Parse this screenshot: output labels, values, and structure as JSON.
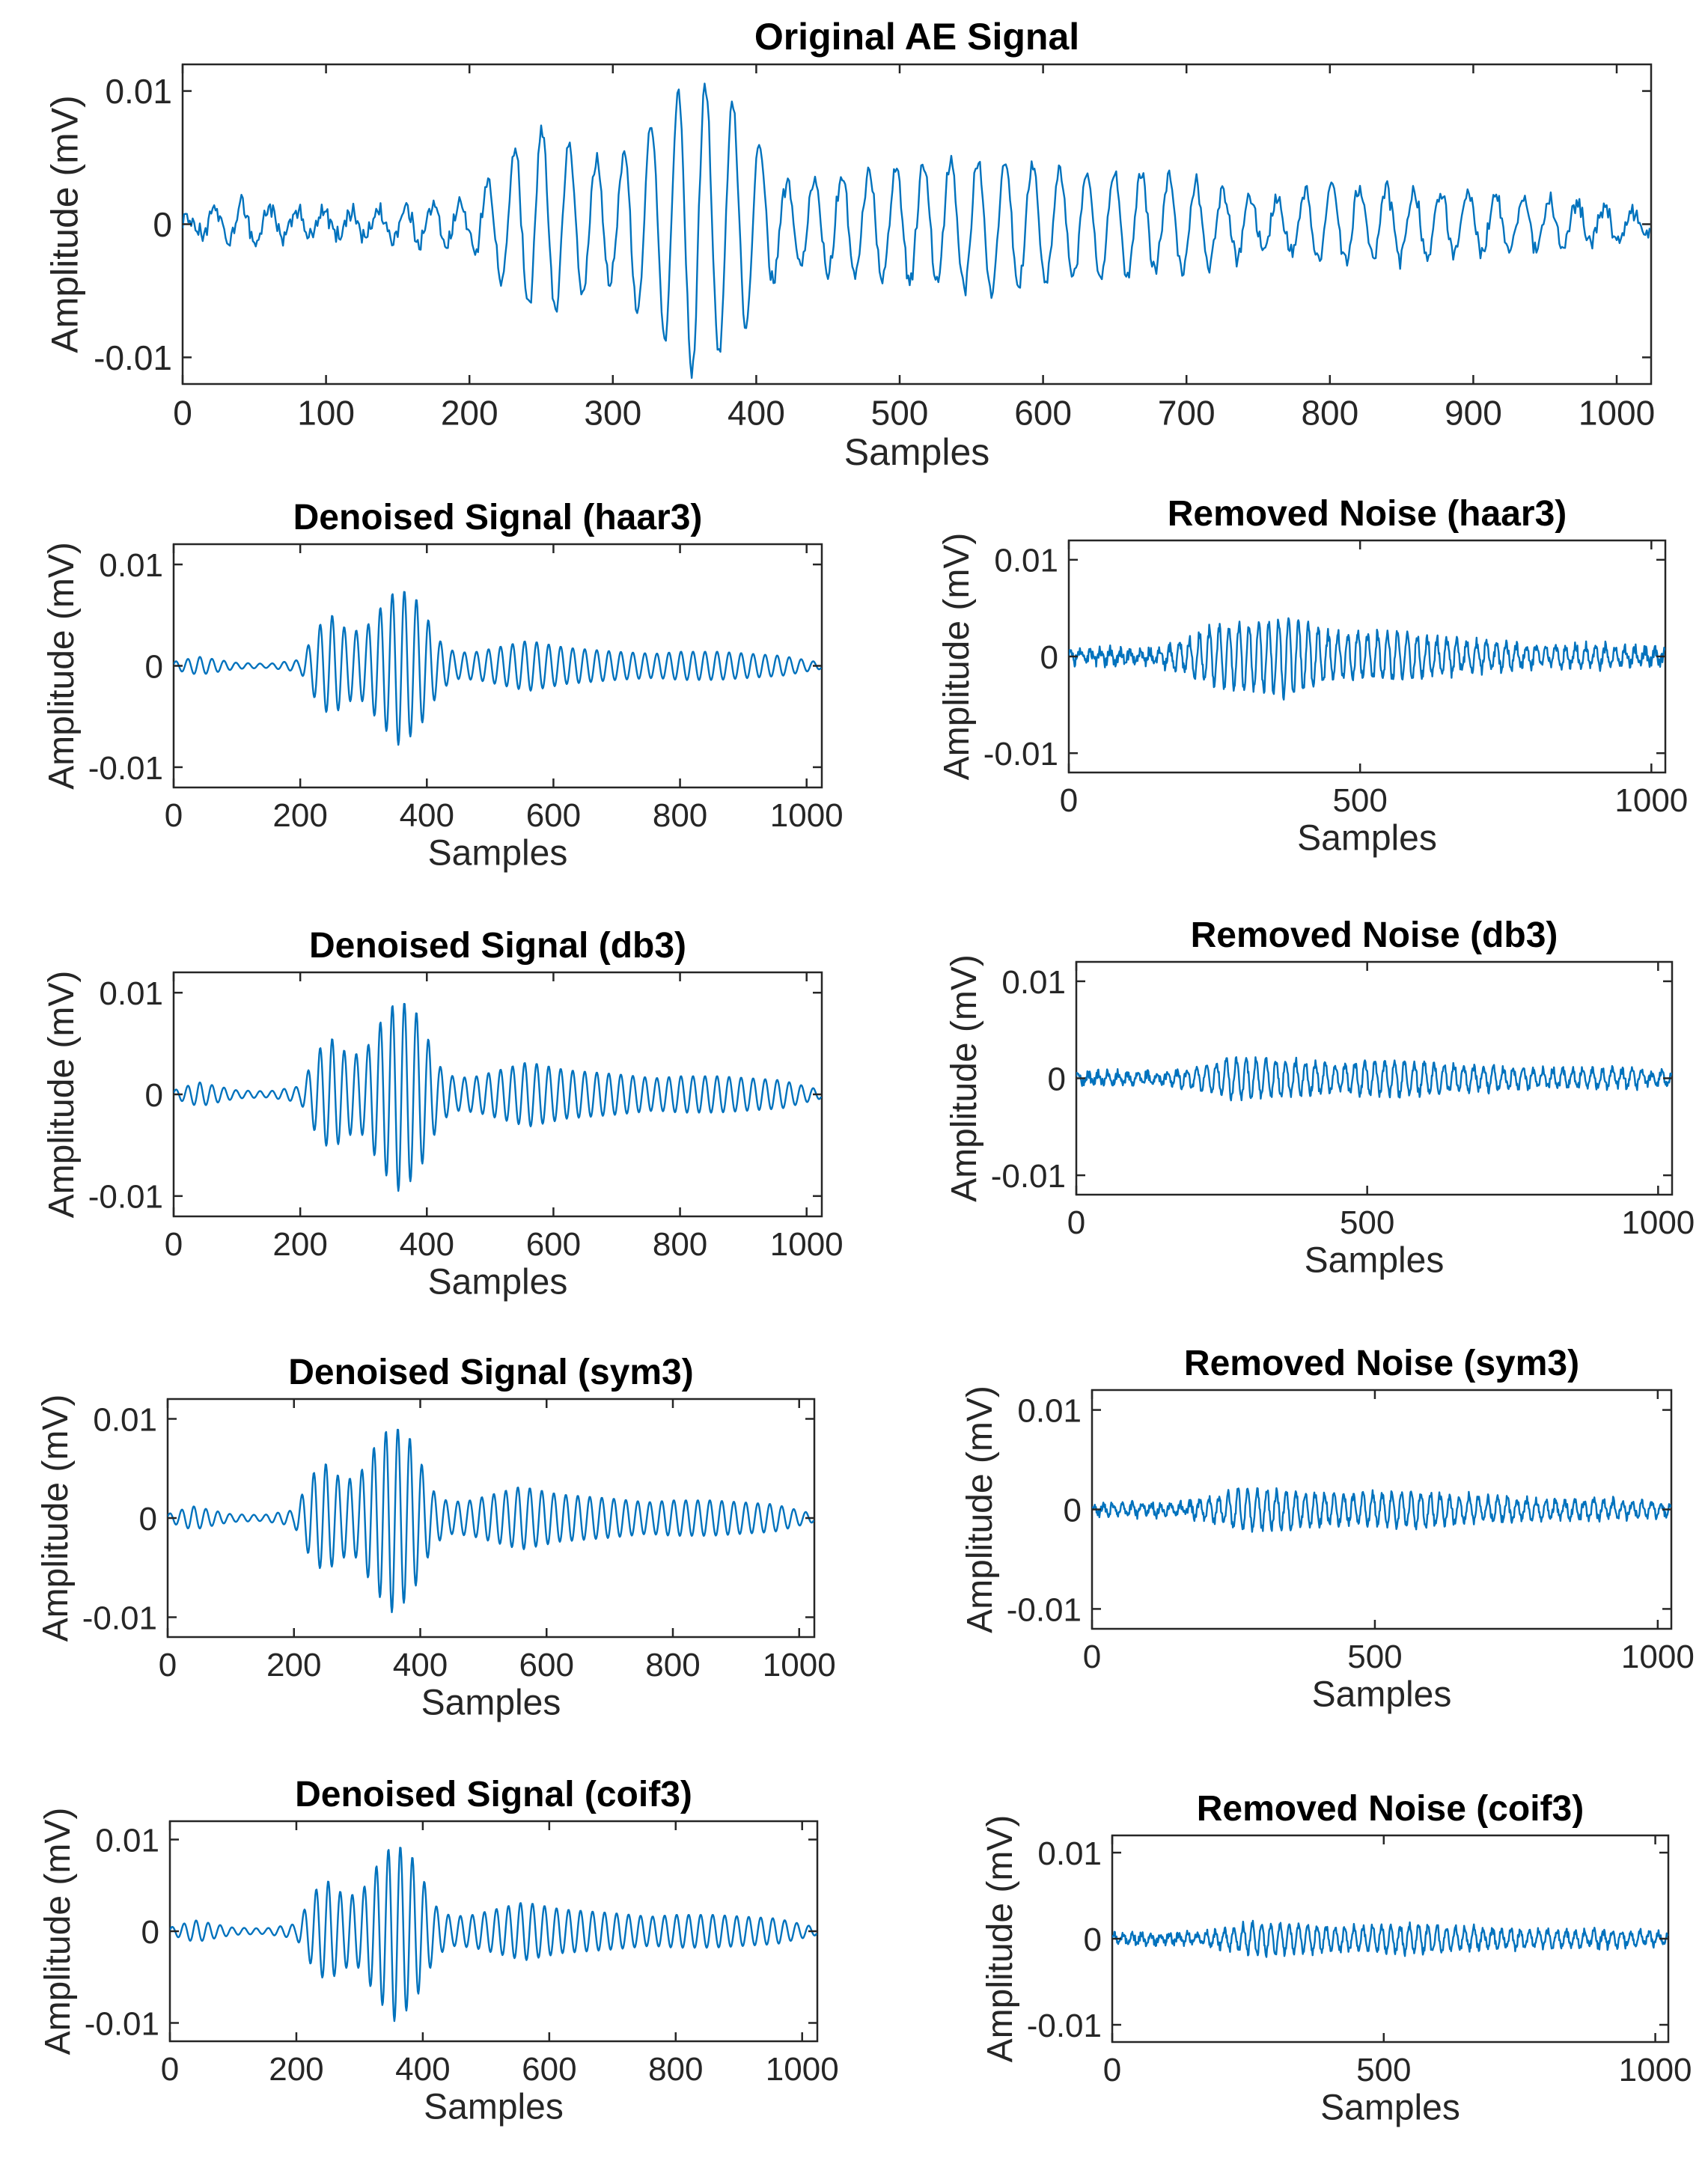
{
  "chart_data": [
    {
      "id": "original",
      "type": "line",
      "title": "Original AE Signal",
      "xlabel": "Samples",
      "ylabel": "Amplitude (mV)",
      "xlim": [
        0,
        1024
      ],
      "ylim": [
        -0.012,
        0.012
      ],
      "xticks": [
        0,
        100,
        200,
        300,
        400,
        500,
        600,
        700,
        800,
        900,
        1000
      ],
      "xtick_labels": [
        "0",
        "100",
        "200",
        "300",
        "400",
        "500",
        "600",
        "700",
        "800",
        "900",
        "1000"
      ],
      "yticks": [
        0.01,
        0,
        -0.01
      ],
      "ytick_labels": [
        "0.01",
        "0",
        "-0.01"
      ],
      "color": "#0072BD",
      "series": [
        {
          "name": "Original AE Signal",
          "samples": 1024,
          "envelope": [
            [
              0,
              0.0004
            ],
            [
              40,
              0.0016
            ],
            [
              100,
              0.0008
            ],
            [
              150,
              0.0012
            ],
            [
              200,
              0.0016
            ],
            [
              230,
              0.0055
            ],
            [
              250,
              0.0072
            ],
            [
              275,
              0.0055
            ],
            [
              300,
              0.0045
            ],
            [
              330,
              0.008
            ],
            [
              355,
              0.0115
            ],
            [
              385,
              0.009
            ],
            [
              420,
              0.003
            ],
            [
              445,
              0.0035
            ],
            [
              480,
              0.004
            ],
            [
              560,
              0.005
            ],
            [
              620,
              0.0042
            ],
            [
              700,
              0.0035
            ],
            [
              760,
              0.0018
            ],
            [
              800,
              0.003
            ],
            [
              860,
              0.0025
            ],
            [
              960,
              0.0018
            ],
            [
              1024,
              0.0008
            ]
          ],
          "period": 19,
          "noise": 0.0006
        }
      ]
    },
    {
      "id": "denoised-haar3",
      "type": "line",
      "title": "Denoised Signal (haar3)",
      "xlabel": "Samples",
      "ylabel": "Amplitude (mV)",
      "xlim": [
        0,
        1024
      ],
      "ylim": [
        -0.012,
        0.012
      ],
      "xticks": [
        0,
        200,
        400,
        600,
        800,
        1000
      ],
      "xtick_labels": [
        "0",
        "200",
        "400",
        "600",
        "800",
        "1000"
      ],
      "yticks": [
        0.01,
        0,
        -0.01
      ],
      "ytick_labels": [
        "0.01",
        "0",
        "-0.01"
      ],
      "color": "#0072BD",
      "series": [
        {
          "name": "Denoised Signal (haar3)",
          "samples": 1024,
          "envelope": [
            [
              0,
              0.0004
            ],
            [
              40,
              0.0009
            ],
            [
              100,
              0.0003
            ],
            [
              150,
              0.0002
            ],
            [
              200,
              0.0006
            ],
            [
              230,
              0.004
            ],
            [
              250,
              0.005
            ],
            [
              275,
              0.0035
            ],
            [
              300,
              0.0035
            ],
            [
              330,
              0.006
            ],
            [
              355,
              0.0078
            ],
            [
              385,
              0.0065
            ],
            [
              420,
              0.0025
            ],
            [
              445,
              0.0013
            ],
            [
              480,
              0.0014
            ],
            [
              560,
              0.0025
            ],
            [
              620,
              0.0018
            ],
            [
              700,
              0.0014
            ],
            [
              760,
              0.0012
            ],
            [
              800,
              0.0014
            ],
            [
              860,
              0.0014
            ],
            [
              960,
              0.001
            ],
            [
              1024,
              0.0003
            ]
          ],
          "period": 19,
          "noise": 0.0
        }
      ]
    },
    {
      "id": "noise-haar3",
      "type": "line",
      "title": "Removed Noise (haar3)",
      "xlabel": "Samples",
      "ylabel": "Amplitude (mV)",
      "xlim": [
        0,
        1024
      ],
      "ylim": [
        -0.012,
        0.012
      ],
      "xticks": [
        0,
        500,
        1000
      ],
      "xtick_labels": [
        "0",
        "500",
        "1000"
      ],
      "yticks": [
        0.01,
        0,
        -0.01
      ],
      "ytick_labels": [
        "0.01",
        "0",
        "-0.01"
      ],
      "color": "#0072BD",
      "series": [
        {
          "name": "Removed Noise (haar3)",
          "samples": 1024,
          "envelope": [
            [
              0,
              0.0005
            ],
            [
              150,
              0.0006
            ],
            [
              220,
              0.002
            ],
            [
              250,
              0.003
            ],
            [
              330,
              0.0035
            ],
            [
              380,
              0.004
            ],
            [
              450,
              0.0022
            ],
            [
              560,
              0.0025
            ],
            [
              620,
              0.0018
            ],
            [
              700,
              0.0014
            ],
            [
              800,
              0.001
            ],
            [
              900,
              0.001
            ],
            [
              1024,
              0.0006
            ]
          ],
          "period": 17,
          "noise": 0.0005
        }
      ]
    },
    {
      "id": "denoised-db3",
      "type": "line",
      "title": "Denoised Signal (db3)",
      "xlabel": "Samples",
      "ylabel": "Amplitude (mV)",
      "xlim": [
        0,
        1024
      ],
      "ylim": [
        -0.012,
        0.012
      ],
      "xticks": [
        0,
        200,
        400,
        600,
        800,
        1000
      ],
      "xtick_labels": [
        "0",
        "200",
        "400",
        "600",
        "800",
        "1000"
      ],
      "yticks": [
        0.01,
        0,
        -0.01
      ],
      "ytick_labels": [
        "0.01",
        "0",
        "-0.01"
      ],
      "color": "#0072BD",
      "series": [
        {
          "name": "Denoised Signal (db3)",
          "samples": 1024,
          "envelope": [
            [
              0,
              0.0004
            ],
            [
              40,
              0.0012
            ],
            [
              100,
              0.0004
            ],
            [
              150,
              0.0003
            ],
            [
              200,
              0.0008
            ],
            [
              230,
              0.0045
            ],
            [
              250,
              0.0055
            ],
            [
              275,
              0.004
            ],
            [
              300,
              0.004
            ],
            [
              330,
              0.0075
            ],
            [
              355,
              0.0095
            ],
            [
              385,
              0.008
            ],
            [
              420,
              0.0028
            ],
            [
              445,
              0.0016
            ],
            [
              480,
              0.0018
            ],
            [
              560,
              0.0032
            ],
            [
              620,
              0.0024
            ],
            [
              700,
              0.002
            ],
            [
              760,
              0.0016
            ],
            [
              800,
              0.0018
            ],
            [
              860,
              0.0018
            ],
            [
              960,
              0.0014
            ],
            [
              1024,
              0.0004
            ]
          ],
          "period": 19,
          "noise": 0.0
        }
      ]
    },
    {
      "id": "noise-db3",
      "type": "line",
      "title": "Removed Noise (db3)",
      "xlabel": "Samples",
      "ylabel": "Amplitude (mV)",
      "xlim": [
        0,
        1024
      ],
      "ylim": [
        -0.012,
        0.012
      ],
      "xticks": [
        0,
        500,
        1000
      ],
      "xtick_labels": [
        "0",
        "500",
        "1000"
      ],
      "yticks": [
        0.01,
        0,
        -0.01
      ],
      "ytick_labels": [
        "0.01",
        "0",
        "-0.01"
      ],
      "color": "#0072BD",
      "series": [
        {
          "name": "Removed Noise (db3)",
          "samples": 1024,
          "envelope": [
            [
              0,
              0.0005
            ],
            [
              150,
              0.0005
            ],
            [
              220,
              0.0012
            ],
            [
              260,
              0.002
            ],
            [
              350,
              0.0018
            ],
            [
              450,
              0.0014
            ],
            [
              560,
              0.0018
            ],
            [
              620,
              0.0014
            ],
            [
              700,
              0.0012
            ],
            [
              800,
              0.0009
            ],
            [
              900,
              0.0009
            ],
            [
              1024,
              0.0006
            ]
          ],
          "period": 17,
          "noise": 0.0004
        }
      ]
    },
    {
      "id": "denoised-sym3",
      "type": "line",
      "title": "Denoised Signal (sym3)",
      "xlabel": "Samples",
      "ylabel": "Amplitude (mV)",
      "xlim": [
        0,
        1024
      ],
      "ylim": [
        -0.012,
        0.012
      ],
      "xticks": [
        0,
        200,
        400,
        600,
        800,
        1000
      ],
      "xtick_labels": [
        "0",
        "200",
        "400",
        "600",
        "800",
        "1000"
      ],
      "yticks": [
        0.01,
        0,
        -0.01
      ],
      "ytick_labels": [
        "0.01",
        "0",
        "-0.01"
      ],
      "color": "#0072BD",
      "series": [
        {
          "name": "Denoised Signal (sym3)",
          "samples": 1024,
          "envelope": [
            [
              0,
              0.0004
            ],
            [
              40,
              0.0012
            ],
            [
              100,
              0.0004
            ],
            [
              150,
              0.0003
            ],
            [
              200,
              0.0008
            ],
            [
              230,
              0.0045
            ],
            [
              250,
              0.0055
            ],
            [
              275,
              0.004
            ],
            [
              300,
              0.004
            ],
            [
              330,
              0.0075
            ],
            [
              355,
              0.0095
            ],
            [
              385,
              0.008
            ],
            [
              420,
              0.0028
            ],
            [
              445,
              0.0016
            ],
            [
              480,
              0.0018
            ],
            [
              560,
              0.0032
            ],
            [
              620,
              0.0024
            ],
            [
              700,
              0.002
            ],
            [
              760,
              0.0016
            ],
            [
              800,
              0.0018
            ],
            [
              860,
              0.0018
            ],
            [
              960,
              0.0014
            ],
            [
              1024,
              0.0004
            ]
          ],
          "period": 19,
          "noise": 0.0
        }
      ]
    },
    {
      "id": "noise-sym3",
      "type": "line",
      "title": "Removed Noise (sym3)",
      "xlabel": "Samples",
      "ylabel": "Amplitude (mV)",
      "xlim": [
        0,
        1024
      ],
      "ylim": [
        -0.012,
        0.012
      ],
      "xticks": [
        0,
        500,
        1000
      ],
      "xtick_labels": [
        "0",
        "500",
        "1000"
      ],
      "yticks": [
        0.01,
        0,
        -0.01
      ],
      "ytick_labels": [
        "0.01",
        "0",
        "-0.01"
      ],
      "color": "#0072BD",
      "series": [
        {
          "name": "Removed Noise (sym3)",
          "samples": 1024,
          "envelope": [
            [
              0,
              0.0005
            ],
            [
              150,
              0.0005
            ],
            [
              220,
              0.0012
            ],
            [
              260,
              0.002
            ],
            [
              350,
              0.0018
            ],
            [
              450,
              0.0014
            ],
            [
              560,
              0.0018
            ],
            [
              620,
              0.0014
            ],
            [
              700,
              0.0012
            ],
            [
              800,
              0.0009
            ],
            [
              900,
              0.0009
            ],
            [
              1024,
              0.0006
            ]
          ],
          "period": 17,
          "noise": 0.0004
        }
      ]
    },
    {
      "id": "denoised-coif3",
      "type": "line",
      "title": "Denoised Signal (coif3)",
      "xlabel": "Samples",
      "ylabel": "Amplitude (mV)",
      "xlim": [
        0,
        1024
      ],
      "ylim": [
        -0.012,
        0.012
      ],
      "xticks": [
        0,
        200,
        400,
        600,
        800,
        1000
      ],
      "xtick_labels": [
        "0",
        "200",
        "400",
        "600",
        "800",
        "1000"
      ],
      "yticks": [
        0.01,
        0,
        -0.01
      ],
      "ytick_labels": [
        "0.01",
        "0",
        "-0.01"
      ],
      "color": "#0072BD",
      "series": [
        {
          "name": "Denoised Signal (coif3)",
          "samples": 1024,
          "envelope": [
            [
              0,
              0.0004
            ],
            [
              40,
              0.0012
            ],
            [
              100,
              0.0004
            ],
            [
              150,
              0.0003
            ],
            [
              200,
              0.0008
            ],
            [
              230,
              0.0045
            ],
            [
              250,
              0.0055
            ],
            [
              275,
              0.004
            ],
            [
              300,
              0.004
            ],
            [
              330,
              0.0075
            ],
            [
              355,
              0.0098
            ],
            [
              385,
              0.008
            ],
            [
              420,
              0.0028
            ],
            [
              445,
              0.0016
            ],
            [
              480,
              0.0018
            ],
            [
              560,
              0.0032
            ],
            [
              620,
              0.0024
            ],
            [
              700,
              0.002
            ],
            [
              760,
              0.0016
            ],
            [
              800,
              0.0018
            ],
            [
              860,
              0.0018
            ],
            [
              960,
              0.0014
            ],
            [
              1024,
              0.0004
            ]
          ],
          "period": 19,
          "noise": 0.0
        }
      ]
    },
    {
      "id": "noise-coif3",
      "type": "line",
      "title": "Removed Noise (coif3)",
      "xlabel": "Samples",
      "ylabel": "Amplitude (mV)",
      "xlim": [
        0,
        1024
      ],
      "ylim": [
        -0.012,
        0.012
      ],
      "xticks": [
        0,
        500,
        1000
      ],
      "xtick_labels": [
        "0",
        "500",
        "1000"
      ],
      "yticks": [
        0.01,
        0,
        -0.01
      ],
      "ytick_labels": [
        "0.01",
        "0",
        "-0.01"
      ],
      "color": "#0072BD",
      "series": [
        {
          "name": "Removed Noise (coif3)",
          "samples": 1024,
          "envelope": [
            [
              0,
              0.0005
            ],
            [
              150,
              0.0005
            ],
            [
              220,
              0.0012
            ],
            [
              260,
              0.0018
            ],
            [
              350,
              0.0016
            ],
            [
              450,
              0.0013
            ],
            [
              560,
              0.0016
            ],
            [
              620,
              0.0013
            ],
            [
              700,
              0.0011
            ],
            [
              800,
              0.0009
            ],
            [
              900,
              0.0009
            ],
            [
              1024,
              0.0006
            ]
          ],
          "period": 17,
          "noise": 0.0004
        }
      ]
    }
  ]
}
